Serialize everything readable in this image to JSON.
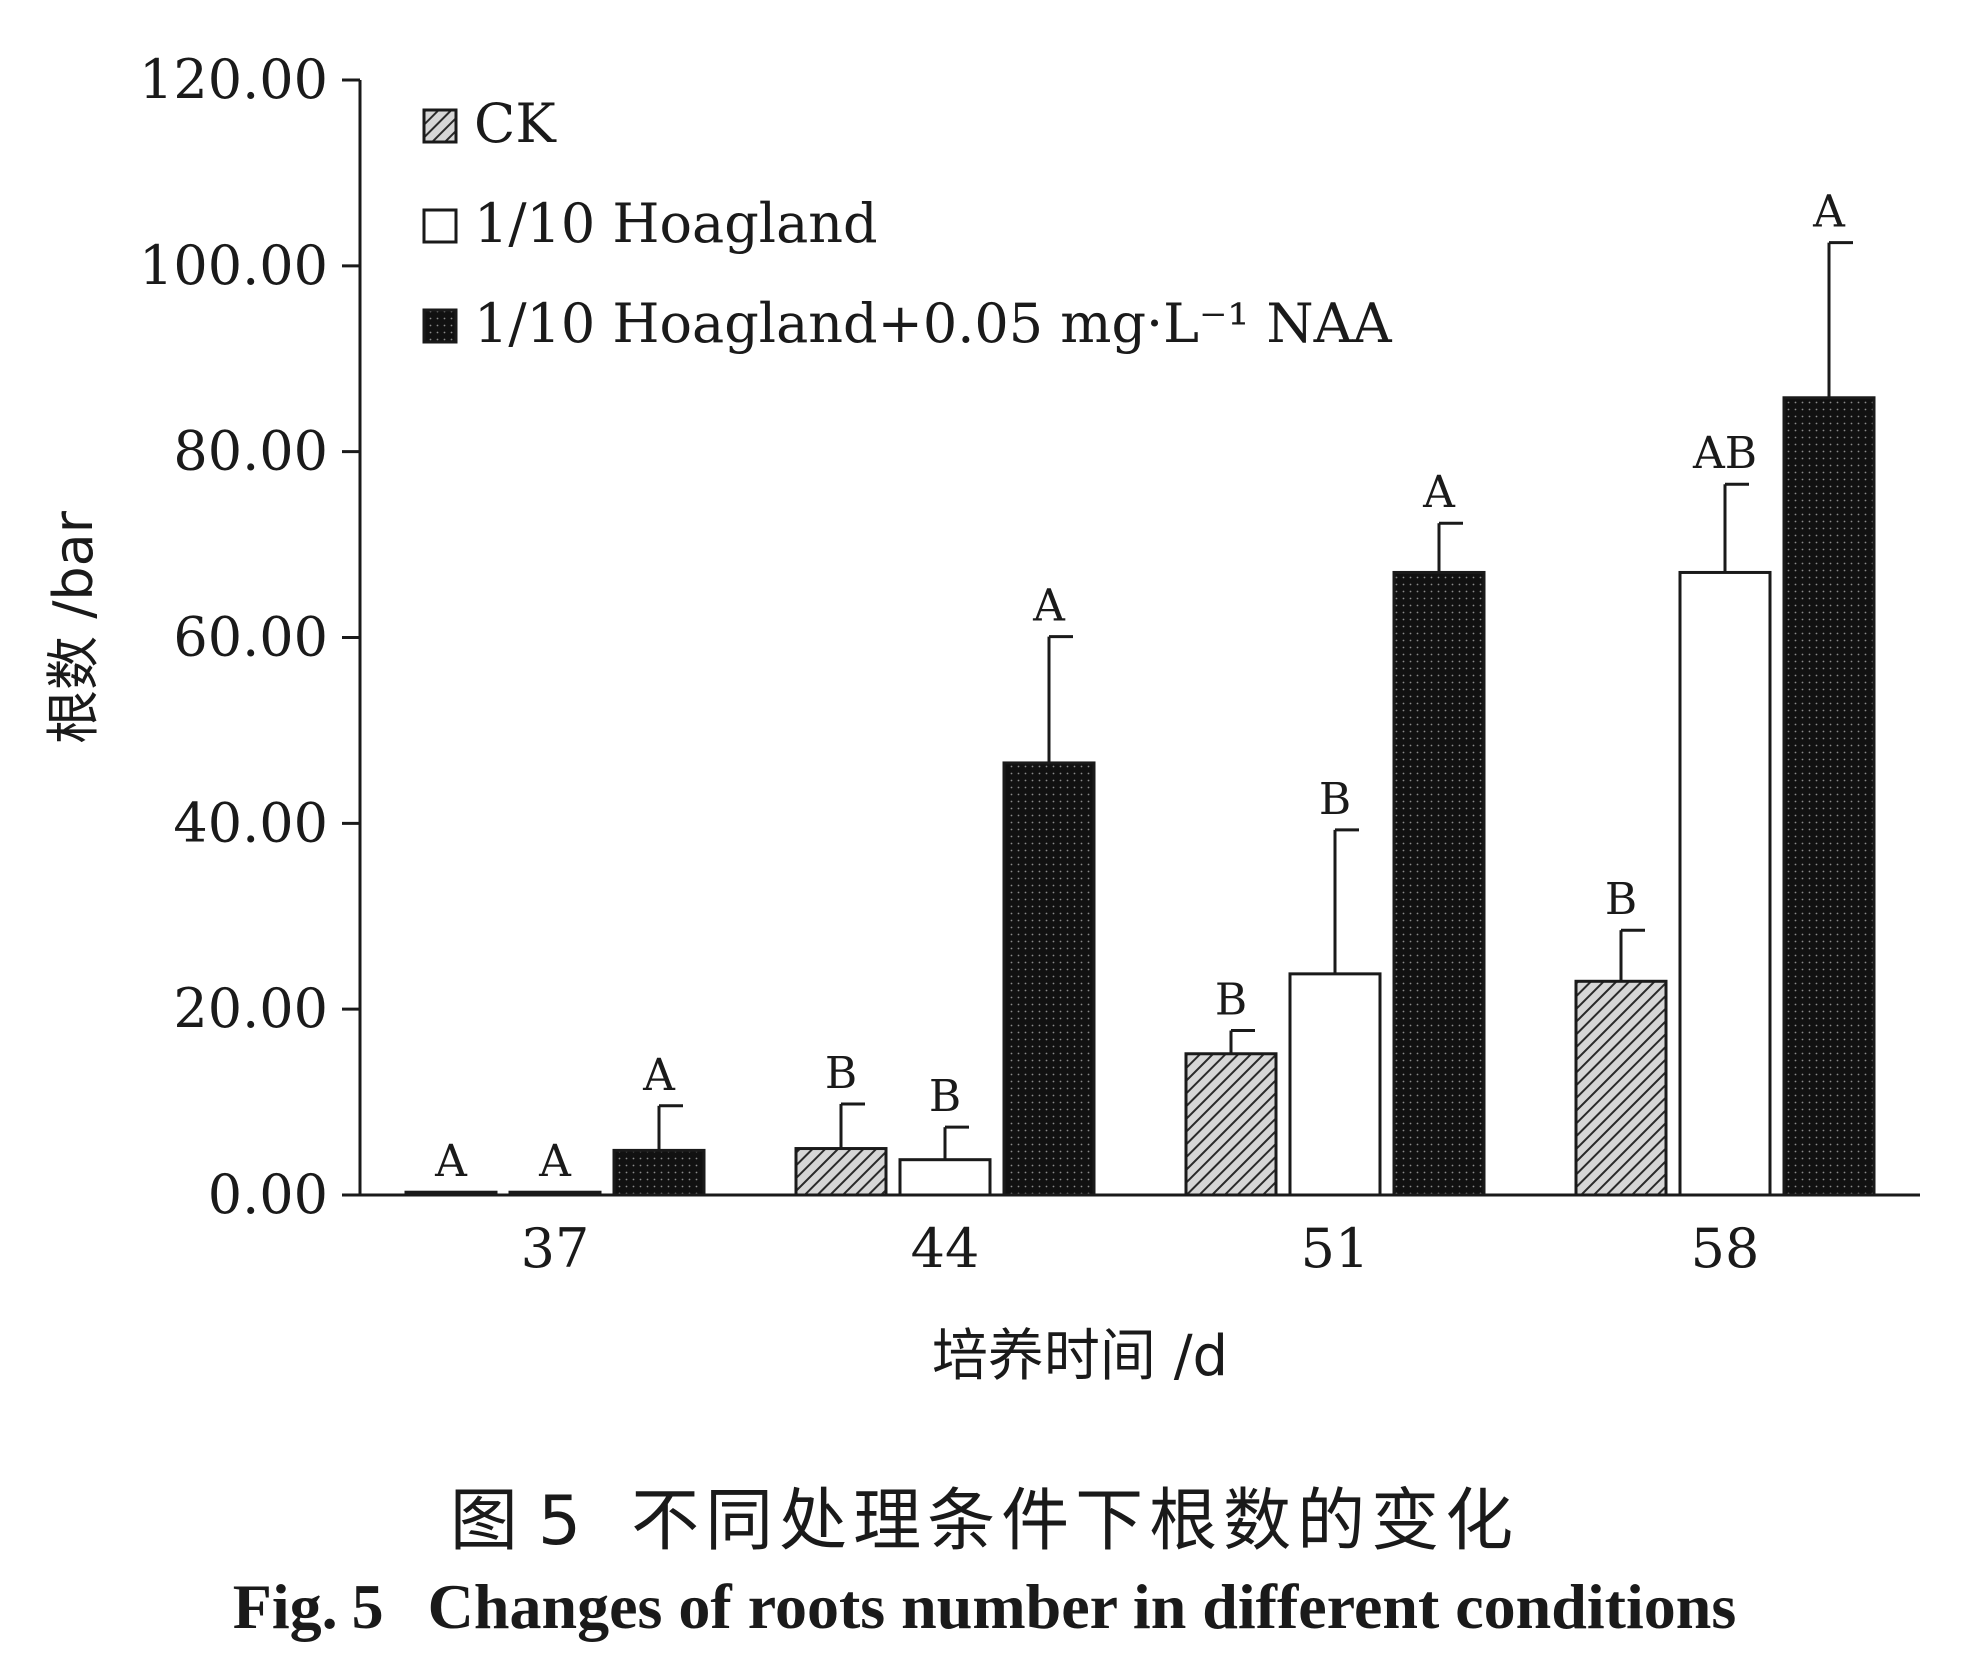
{
  "chart_data": {
    "type": "bar",
    "categories": [
      "37",
      "44",
      "51",
      "58"
    ],
    "xlabel": "培养时间 /d",
    "ylabel": "根数 /bar",
    "ylim": [
      0,
      120
    ],
    "yticks": [
      "0.00",
      "20.00",
      "40.00",
      "60.00",
      "80.00",
      "100.00",
      "120.00"
    ],
    "legend_position": "top-left",
    "series": [
      {
        "name": "CK",
        "pattern": "hatched",
        "color": "#444444",
        "values": [
          0.3,
          5.0,
          15.2,
          23.0
        ],
        "errors": [
          0.0,
          4.8,
          2.5,
          5.5
        ],
        "letters": [
          "A",
          "B",
          "B",
          "B"
        ]
      },
      {
        "name": "1/10 Hoagland",
        "pattern": "open",
        "color": "#ffffff",
        "values": [
          0.3,
          3.8,
          23.8,
          67.0
        ],
        "errors": [
          0.0,
          3.5,
          15.5,
          9.5
        ],
        "letters": [
          "A",
          "B",
          "B",
          "AB"
        ]
      },
      {
        "name": "1/10 Hoagland+0.05 mg·L⁻¹ NAA",
        "pattern": "dotted-dark",
        "color": "#111111",
        "values": [
          4.8,
          46.5,
          67.0,
          85.8
        ],
        "errors": [
          4.8,
          13.6,
          5.3,
          16.7
        ],
        "letters": [
          "A",
          "A",
          "A",
          "A"
        ]
      }
    ]
  },
  "caption": {
    "cn_prefix": "图",
    "cn_number": "5",
    "cn_title": "不同处理条件下根数的变化",
    "en_prefix": "Fig.",
    "en_number": "5",
    "en_title": "Changes of roots number in different conditions"
  }
}
